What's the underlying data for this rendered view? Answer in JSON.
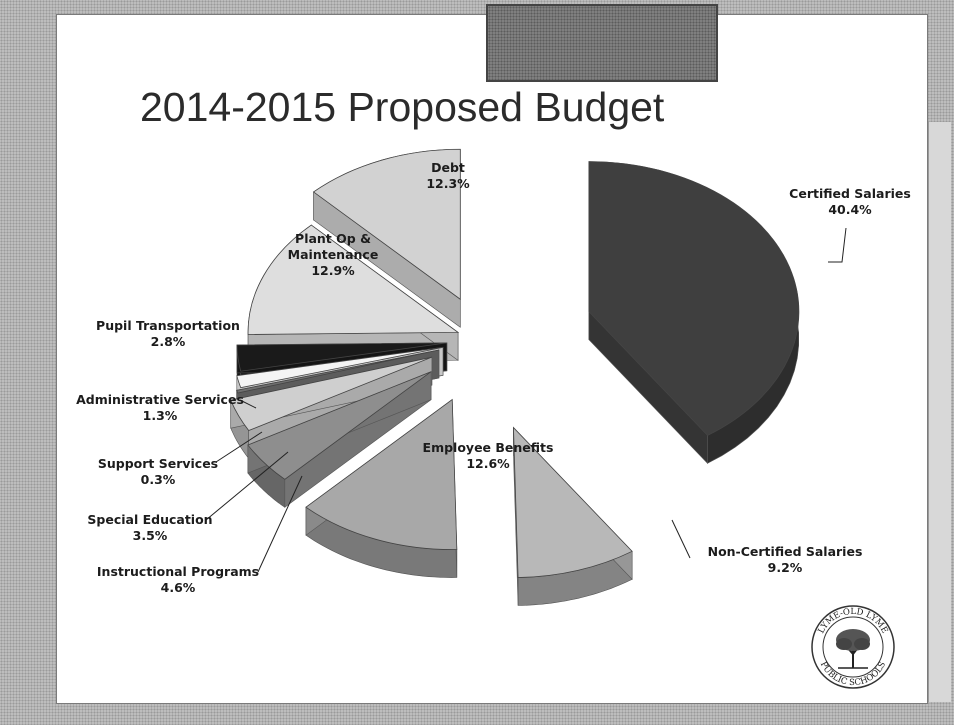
{
  "slide": {
    "title": "2014-2015 Proposed Budget"
  },
  "chart_data": {
    "type": "pie",
    "title": "2014-2015 Proposed Budget",
    "exploded": true,
    "style": "3d",
    "slices": [
      {
        "label": "Certified Salaries",
        "value": 40.4,
        "value_label": "40.4%",
        "color": "#3f3f3f"
      },
      {
        "label": "Non-Certified Salaries",
        "value": 9.2,
        "value_label": "9.2%",
        "color": "#b8b8b8"
      },
      {
        "label": "Employee Benefits",
        "value": 12.6,
        "value_label": "12.6%",
        "color": "#a8a8a8"
      },
      {
        "label": "Instructional Programs",
        "value": 4.6,
        "value_label": "4.6%",
        "color": "#8e8e8e"
      },
      {
        "label": "Special Education",
        "value": 3.5,
        "value_label": "3.5%",
        "color": "#cfcfcf"
      },
      {
        "label": "Support Services",
        "value": 0.3,
        "value_label": "0.3%",
        "color": "#707070"
      },
      {
        "label": "Administrative Services",
        "value": 1.3,
        "value_label": "1.3%",
        "color": "#f4f4f4"
      },
      {
        "label": "Pupil Transportation",
        "value": 2.8,
        "value_label": "2.8%",
        "color": "#1a1a1a"
      },
      {
        "label": "Plant Op & Maintenance",
        "value": 12.9,
        "value_label": "12.9%",
        "color": "#dedede"
      },
      {
        "label": "Debt",
        "value": 12.3,
        "value_label": "12.3%",
        "color": "#d2d2d2"
      }
    ]
  },
  "logo": {
    "text_top": "LYME-OLD LYME",
    "text_bottom": "PUBLIC SCHOOLS"
  }
}
